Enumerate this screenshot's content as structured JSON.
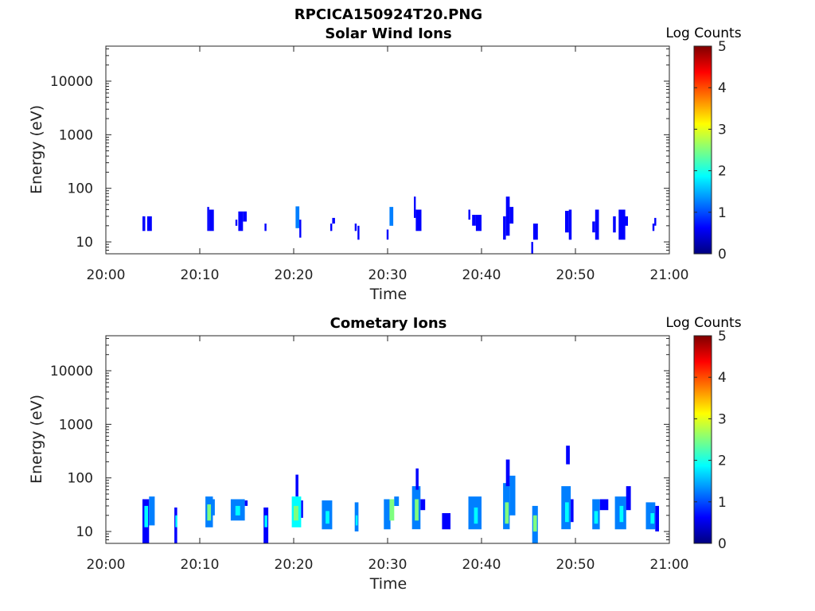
{
  "figure_title": "RPCICA150924T20.PNG",
  "colormap": [
    "#00007f",
    "#0000ff",
    "#007fff",
    "#00ffff",
    "#7fff7f",
    "#ffff00",
    "#ff7f00",
    "#ff0000",
    "#7f0000"
  ],
  "chart_data": [
    {
      "type": "heatmap",
      "title": "Solar Wind Ions",
      "xlabel": "Time",
      "ylabel": "Energy (eV)",
      "x_ticks": [
        "20:00",
        "20:10",
        "20:20",
        "20:30",
        "20:40",
        "20:50",
        "21:00"
      ],
      "y_ticks": [
        "10",
        "100",
        "1000",
        "10000"
      ],
      "yscale": "log",
      "xlim_minutes": [
        0,
        60
      ],
      "ylim": [
        6,
        45000
      ],
      "colorbar": {
        "title": "Log Counts",
        "range": [
          0,
          5
        ],
        "ticks": [
          "0",
          "1",
          "2",
          "3",
          "4",
          "5"
        ]
      },
      "cells": [
        [
          3.9,
          4.2,
          16,
          30,
          0.6
        ],
        [
          4.4,
          4.9,
          16,
          30,
          0.7
        ],
        [
          10.8,
          11.0,
          16,
          45,
          0.6
        ],
        [
          11.0,
          11.5,
          16,
          40,
          0.9
        ],
        [
          13.8,
          14.0,
          20,
          26,
          0.6
        ],
        [
          14.1,
          14.6,
          16,
          37,
          0.7
        ],
        [
          14.6,
          15.0,
          24,
          37,
          0.6
        ],
        [
          16.9,
          17.1,
          16,
          22,
          0.5
        ],
        [
          20.2,
          20.6,
          18,
          46,
          1.0
        ],
        [
          20.6,
          20.8,
          12,
          26,
          0.7
        ],
        [
          23.9,
          24.1,
          16,
          22,
          0.5
        ],
        [
          24.1,
          24.4,
          22,
          28,
          0.7
        ],
        [
          26.5,
          26.7,
          16,
          22,
          0.5
        ],
        [
          26.8,
          27.0,
          11,
          20,
          0.5
        ],
        [
          29.9,
          30.1,
          11,
          17,
          0.5
        ],
        [
          30.2,
          30.6,
          20,
          45,
          1.0
        ],
        [
          32.8,
          33.0,
          28,
          70,
          0.6
        ],
        [
          33.0,
          33.6,
          16,
          40,
          0.8
        ],
        [
          38.6,
          38.8,
          26,
          40,
          0.5
        ],
        [
          39.0,
          39.4,
          20,
          32,
          0.7
        ],
        [
          39.4,
          40.0,
          16,
          32,
          0.6
        ],
        [
          42.3,
          42.6,
          11,
          30,
          0.7
        ],
        [
          42.6,
          43.0,
          13,
          70,
          0.8
        ],
        [
          43.0,
          43.4,
          22,
          45,
          0.6
        ],
        [
          45.3,
          45.5,
          6,
          10,
          0.5
        ],
        [
          45.5,
          46.0,
          11,
          22,
          0.6
        ],
        [
          48.9,
          49.3,
          15,
          38,
          0.7
        ],
        [
          49.3,
          49.6,
          11,
          40,
          0.5
        ],
        [
          51.8,
          52.1,
          15,
          24,
          0.6
        ],
        [
          52.1,
          52.5,
          11,
          40,
          0.8
        ],
        [
          54.0,
          54.3,
          15,
          30,
          0.6
        ],
        [
          54.6,
          55.3,
          11,
          40,
          0.8
        ],
        [
          55.3,
          55.6,
          20,
          30,
          0.6
        ],
        [
          58.2,
          58.4,
          16,
          22,
          0.5
        ],
        [
          58.4,
          58.6,
          20,
          28,
          0.5
        ]
      ]
    },
    {
      "type": "heatmap",
      "title": "Cometary Ions",
      "xlabel": "Time",
      "ylabel": "Energy (eV)",
      "x_ticks": [
        "20:00",
        "20:10",
        "20:20",
        "20:30",
        "20:40",
        "20:50",
        "21:00"
      ],
      "y_ticks": [
        "10",
        "100",
        "1000",
        "10000"
      ],
      "yscale": "log",
      "xlim_minutes": [
        0,
        60
      ],
      "ylim": [
        6,
        45000
      ],
      "colorbar": {
        "title": "Log Counts",
        "range": [
          0,
          5
        ],
        "ticks": [
          "0",
          "1",
          "2",
          "3",
          "4",
          "5"
        ]
      },
      "cells": [
        [
          3.9,
          4.6,
          6,
          40,
          0.8
        ],
        [
          4.1,
          4.5,
          12,
          30,
          1.9
        ],
        [
          4.6,
          5.2,
          13,
          45,
          1.0
        ],
        [
          7.3,
          7.6,
          6,
          28,
          0.9
        ],
        [
          7.4,
          7.6,
          12,
          20,
          2.0
        ],
        [
          10.6,
          11.4,
          12,
          45,
          1.4
        ],
        [
          10.8,
          11.2,
          16,
          32,
          2.6
        ],
        [
          11.2,
          11.6,
          20,
          40,
          1.0
        ],
        [
          13.3,
          14.8,
          16,
          40,
          1.3
        ],
        [
          13.8,
          14.3,
          20,
          30,
          2.0
        ],
        [
          14.8,
          15.1,
          30,
          38,
          0.8
        ],
        [
          16.8,
          17.3,
          6,
          28,
          0.8
        ],
        [
          16.9,
          17.2,
          12,
          20,
          1.9
        ],
        [
          19.8,
          20.8,
          12,
          45,
          1.6
        ],
        [
          20.0,
          20.5,
          16,
          30,
          2.6
        ],
        [
          20.2,
          20.5,
          45,
          115,
          0.8
        ],
        [
          20.8,
          21.0,
          18,
          38,
          0.9
        ],
        [
          23.0,
          24.1,
          11,
          38,
          1.2
        ],
        [
          23.4,
          23.8,
          14,
          24,
          2.0
        ],
        [
          26.5,
          26.9,
          10,
          35,
          1.2
        ],
        [
          26.6,
          26.8,
          13,
          20,
          2.0
        ],
        [
          29.6,
          30.3,
          11,
          40,
          1.2
        ],
        [
          30.2,
          30.7,
          16,
          40,
          2.3
        ],
        [
          30.7,
          31.2,
          30,
          45,
          1.0
        ],
        [
          32.6,
          33.5,
          11,
          70,
          1.4
        ],
        [
          32.9,
          33.3,
          16,
          40,
          2.3
        ],
        [
          33.0,
          33.3,
          60,
          150,
          0.7
        ],
        [
          33.5,
          34.0,
          25,
          40,
          0.8
        ],
        [
          35.8,
          36.7,
          11,
          22,
          0.9
        ],
        [
          38.6,
          40.0,
          11,
          45,
          1.3
        ],
        [
          39.2,
          39.6,
          14,
          28,
          2.1
        ],
        [
          42.3,
          43.0,
          11,
          80,
          1.5
        ],
        [
          42.5,
          42.9,
          14,
          35,
          2.4
        ],
        [
          42.6,
          43.0,
          70,
          220,
          0.8
        ],
        [
          43.0,
          43.6,
          20,
          110,
          1.1
        ],
        [
          45.4,
          46.0,
          6,
          30,
          1.1
        ],
        [
          45.5,
          45.9,
          10,
          20,
          2.2
        ],
        [
          48.5,
          49.5,
          11,
          70,
          1.3
        ],
        [
          48.9,
          49.3,
          15,
          35,
          2.1
        ],
        [
          49.0,
          49.4,
          180,
          400,
          0.6
        ],
        [
          49.5,
          49.8,
          15,
          40,
          0.9
        ],
        [
          51.8,
          52.6,
          11,
          40,
          1.2
        ],
        [
          52.0,
          52.4,
          14,
          24,
          2.0
        ],
        [
          52.6,
          53.5,
          25,
          40,
          0.8
        ],
        [
          54.2,
          55.4,
          11,
          45,
          1.4
        ],
        [
          54.7,
          55.1,
          15,
          30,
          2.1
        ],
        [
          55.4,
          55.9,
          25,
          70,
          0.8
        ],
        [
          57.5,
          58.5,
          11,
          35,
          1.0
        ],
        [
          58.0,
          58.4,
          14,
          22,
          1.7
        ],
        [
          58.5,
          58.9,
          10,
          30,
          0.8
        ]
      ]
    }
  ]
}
